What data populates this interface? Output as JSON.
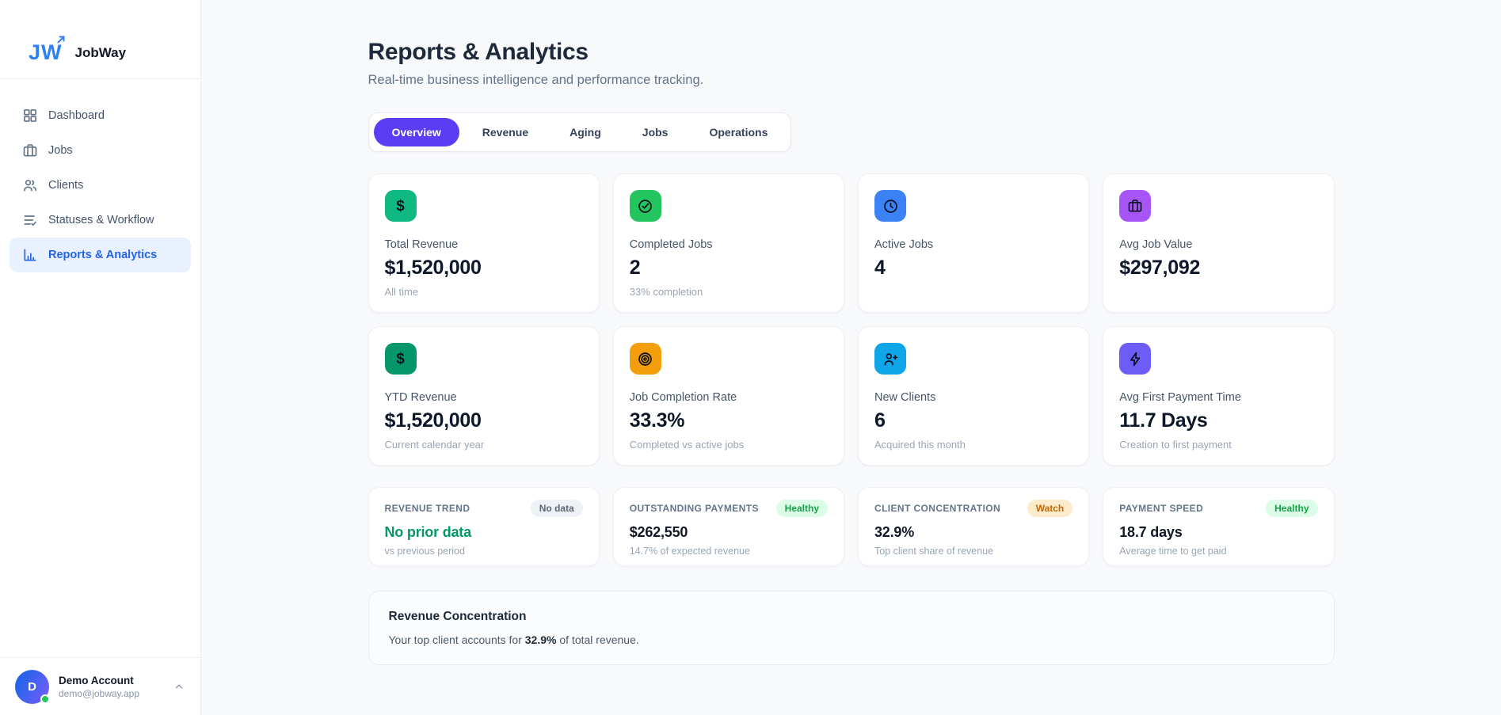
{
  "sidebar": {
    "logo_text": "JW",
    "brand": "JobWay",
    "items": [
      {
        "label": "Dashboard",
        "icon": "grid-icon",
        "active": false
      },
      {
        "label": "Jobs",
        "icon": "briefcase-icon",
        "active": false
      },
      {
        "label": "Clients",
        "icon": "users-icon",
        "active": false
      },
      {
        "label": "Statuses & Workflow",
        "icon": "list-check-icon",
        "active": false
      },
      {
        "label": "Reports & Analytics",
        "icon": "bar-chart-icon",
        "active": true
      }
    ],
    "account": {
      "initial": "D",
      "name": "Demo Account",
      "email": "demo@jobway.app"
    }
  },
  "header": {
    "title": "Reports & Analytics",
    "subtitle": "Real-time business intelligence and performance tracking."
  },
  "tabs": [
    {
      "label": "Overview",
      "active": true
    },
    {
      "label": "Revenue",
      "active": false
    },
    {
      "label": "Aging",
      "active": false
    },
    {
      "label": "Jobs",
      "active": false
    },
    {
      "label": "Operations",
      "active": false
    }
  ],
  "stat_cards": [
    {
      "icon": "dollar-icon",
      "icon_bg": "#10b981",
      "label": "Total Revenue",
      "value": "$1,520,000",
      "caption": "All time"
    },
    {
      "icon": "check-circle-icon",
      "icon_bg": "#22c55e",
      "label": "Completed Jobs",
      "value": "2",
      "caption": "33% completion"
    },
    {
      "icon": "clock-icon",
      "icon_bg": "#3b82f6",
      "label": "Active Jobs",
      "value": "4",
      "caption": ""
    },
    {
      "icon": "briefcase-icon",
      "icon_bg": "#a855f7",
      "label": "Avg Job Value",
      "value": "$297,092",
      "caption": ""
    },
    {
      "icon": "dollar-icon",
      "icon_bg": "#059669",
      "label": "YTD Revenue",
      "value": "$1,520,000",
      "caption": "Current calendar year"
    },
    {
      "icon": "target-icon",
      "icon_bg": "#f59e0b",
      "label": "Job Completion Rate",
      "value": "33.3%",
      "caption": "Completed vs active jobs"
    },
    {
      "icon": "user-plus-icon",
      "icon_bg": "#0ea5e9",
      "label": "New Clients",
      "value": "6",
      "caption": "Acquired this month"
    },
    {
      "icon": "lightning-icon",
      "icon_bg": "#6d5cf6",
      "label": "Avg First Payment Time",
      "value": "11.7 Days",
      "caption": "Creation to first payment"
    }
  ],
  "kpi_cards": [
    {
      "label": "REVENUE TREND",
      "badge": "No data",
      "badge_bg": "#eef1f5",
      "badge_color": "#5b6676",
      "value": "No prior data",
      "value_color": "#059669",
      "caption": "vs previous period"
    },
    {
      "label": "OUTSTANDING PAYMENTS",
      "badge": "Healthy",
      "badge_bg": "#dcfce7",
      "badge_color": "#16a34a",
      "value": "$262,550",
      "value_color": "#111827",
      "caption": "14.7% of expected revenue"
    },
    {
      "label": "CLIENT CONCENTRATION",
      "badge": "Watch",
      "badge_bg": "#fdeccc",
      "badge_color": "#c26803",
      "value": "32.9%",
      "value_color": "#111827",
      "caption": "Top client share of revenue"
    },
    {
      "label": "PAYMENT SPEED",
      "badge": "Healthy",
      "badge_bg": "#dcfce7",
      "badge_color": "#16a34a",
      "value": "18.7 days",
      "value_color": "#111827",
      "caption": "Average time to get paid"
    }
  ],
  "insight": {
    "title": "Revenue Concentration",
    "text_prefix": "Your top client accounts for ",
    "text_bold": "32.9%",
    "text_suffix": " of total revenue."
  },
  "colors": {
    "accent": "#5b3df5",
    "active_nav": "#2563eb",
    "brand_blue": "#2f80f5"
  }
}
